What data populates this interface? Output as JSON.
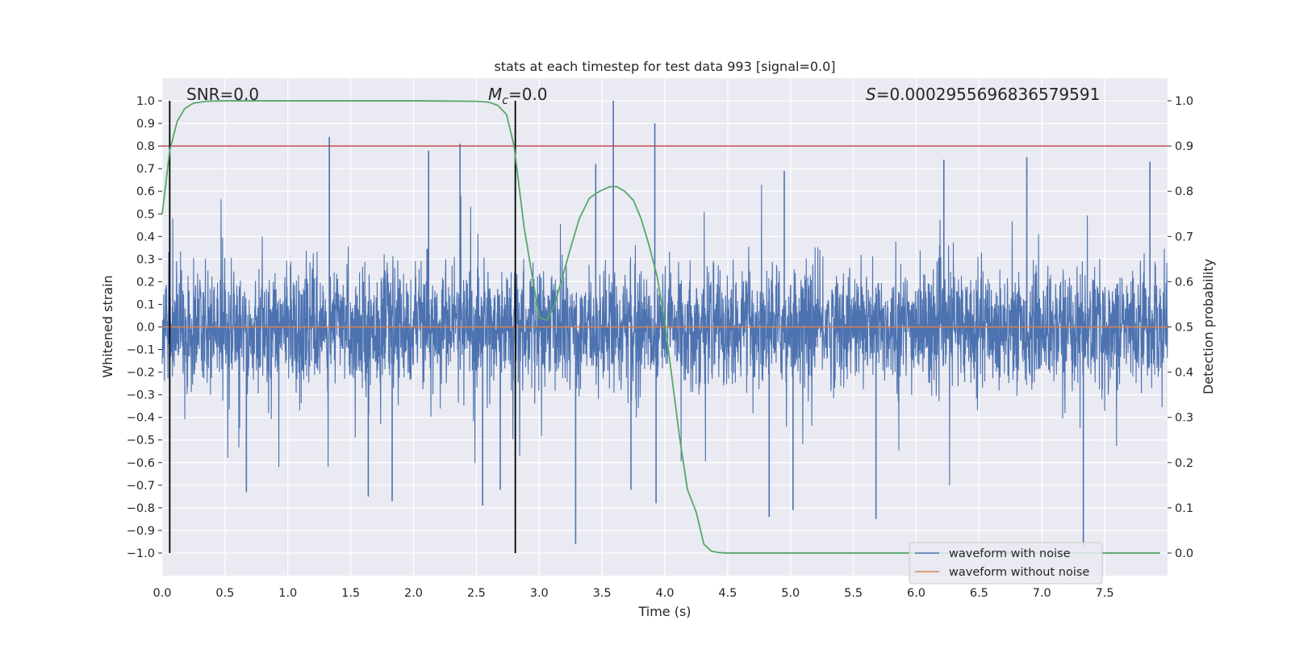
{
  "chart_data": {
    "type": "line",
    "title": "stats at each timestep for test data 993 [signal=0.0]",
    "xlabel": "Time (s)",
    "ylabel": "Whitened strain",
    "y2label": "Detection probability",
    "xlim": [
      0.0,
      8.0
    ],
    "ylim": [
      -1.1,
      1.1
    ],
    "y2lim": [
      -0.05,
      1.05
    ],
    "x_ticks": [
      0.0,
      0.5,
      1.0,
      1.5,
      2.0,
      2.5,
      3.0,
      3.5,
      4.0,
      4.5,
      5.0,
      5.5,
      6.0,
      6.5,
      7.0,
      7.5
    ],
    "x_tick_labels": [
      "0.0",
      "0.5",
      "1.0",
      "1.5",
      "2.0",
      "2.5",
      "3.0",
      "3.5",
      "4.0",
      "4.5",
      "5.0",
      "5.5",
      "6.0",
      "6.5",
      "7.0",
      "7.5"
    ],
    "y_ticks": [
      -1.0,
      -0.9,
      -0.8,
      -0.7,
      -0.6,
      -0.5,
      -0.4,
      -0.3,
      -0.2,
      -0.1,
      0.0,
      0.1,
      0.2,
      0.3,
      0.4,
      0.5,
      0.6,
      0.7,
      0.8,
      0.9,
      1.0
    ],
    "y_tick_labels": [
      "−1.0",
      "−0.9",
      "−0.8",
      "−0.7",
      "−0.6",
      "−0.5",
      "−0.4",
      "−0.3",
      "−0.2",
      "−0.1",
      "0.0",
      "0.1",
      "0.2",
      "0.3",
      "0.4",
      "0.5",
      "0.6",
      "0.7",
      "0.8",
      "0.9",
      "1.0"
    ],
    "y2_ticks": [
      0.0,
      0.1,
      0.2,
      0.3,
      0.4,
      0.5,
      0.6,
      0.7,
      0.8,
      0.9,
      1.0
    ],
    "y2_tick_labels": [
      "0.0",
      "0.1",
      "0.2",
      "0.3",
      "0.4",
      "0.5",
      "0.6",
      "0.7",
      "0.8",
      "0.9",
      "1.0"
    ],
    "grid": true,
    "legend_position": "bottom-right",
    "annotations": {
      "snr": "SNR=0.0",
      "mc_symbol": "M",
      "mc_subscript": "c",
      "mc_value": "=0.0",
      "s_symbol": "S",
      "s_value": "=0.0002955696836579591"
    },
    "series": [
      {
        "name": "waveform with noise",
        "axis": "left",
        "color": "#4c72b0",
        "kind": "noise",
        "x_range": [
          0.0,
          8.0
        ],
        "typical_amplitude": 0.2,
        "peaks": [
          {
            "x": 0.06,
            "y": 0.47
          },
          {
            "x": 0.06,
            "y": -0.61
          },
          {
            "x": 0.67,
            "y": -0.73
          },
          {
            "x": 1.33,
            "y": 0.84
          },
          {
            "x": 1.64,
            "y": -0.75
          },
          {
            "x": 1.83,
            "y": -0.77
          },
          {
            "x": 2.12,
            "y": 0.78
          },
          {
            "x": 2.37,
            "y": 0.81
          },
          {
            "x": 2.55,
            "y": -0.79
          },
          {
            "x": 2.69,
            "y": -0.72
          },
          {
            "x": 3.29,
            "y": -0.96
          },
          {
            "x": 3.45,
            "y": 0.72
          },
          {
            "x": 3.59,
            "y": 1.0
          },
          {
            "x": 3.73,
            "y": -0.72
          },
          {
            "x": 3.92,
            "y": 0.9
          },
          {
            "x": 3.93,
            "y": -0.78
          },
          {
            "x": 4.83,
            "y": -0.84
          },
          {
            "x": 4.95,
            "y": 0.69
          },
          {
            "x": 5.02,
            "y": -0.81
          },
          {
            "x": 5.68,
            "y": -0.85
          },
          {
            "x": 6.22,
            "y": 0.74
          },
          {
            "x": 6.88,
            "y": 0.75
          },
          {
            "x": 7.33,
            "y": -0.97
          },
          {
            "x": 7.86,
            "y": 0.73
          }
        ]
      },
      {
        "name": "waveform without noise",
        "axis": "left",
        "color": "#dd8452",
        "x": [
          0.0,
          8.0
        ],
        "y": [
          0.0,
          0.0
        ]
      },
      {
        "axis": "right",
        "color": "#55a868",
        "x": [
          0.0,
          0.06,
          0.12,
          0.18,
          0.25,
          0.35,
          0.5,
          1.0,
          1.5,
          2.0,
          2.5,
          2.6,
          2.67,
          2.74,
          2.8,
          2.88,
          2.94,
          3.0,
          3.06,
          3.12,
          3.18,
          3.25,
          3.32,
          3.4,
          3.48,
          3.56,
          3.62,
          3.68,
          3.75,
          3.81,
          3.87,
          3.94,
          4.0,
          4.06,
          4.12,
          4.18,
          4.25,
          4.31,
          4.37,
          4.43,
          4.5,
          5.0,
          6.0,
          7.0,
          7.94
        ],
        "y": [
          0.75,
          0.89,
          0.955,
          0.983,
          0.995,
          0.999,
          1.0,
          1.0,
          1.0,
          1.0,
          0.999,
          0.997,
          0.99,
          0.97,
          0.9,
          0.72,
          0.62,
          0.52,
          0.515,
          0.548,
          0.605,
          0.675,
          0.74,
          0.785,
          0.8,
          0.81,
          0.81,
          0.8,
          0.78,
          0.74,
          0.685,
          0.61,
          0.51,
          0.38,
          0.25,
          0.14,
          0.09,
          0.02,
          0.004,
          0.001,
          0.0,
          0.0,
          0.0,
          0.0,
          0.0
        ]
      }
    ],
    "hlines": [
      {
        "axis": "right",
        "y": 0.9,
        "color": "#c44e52"
      }
    ],
    "vlines": [
      {
        "x": 0.06,
        "ymin": -1.0,
        "ymax": 1.0,
        "color": "#000000"
      },
      {
        "x": 2.81,
        "ymin": -1.0,
        "ymax": 1.0,
        "color": "#000000"
      }
    ]
  }
}
